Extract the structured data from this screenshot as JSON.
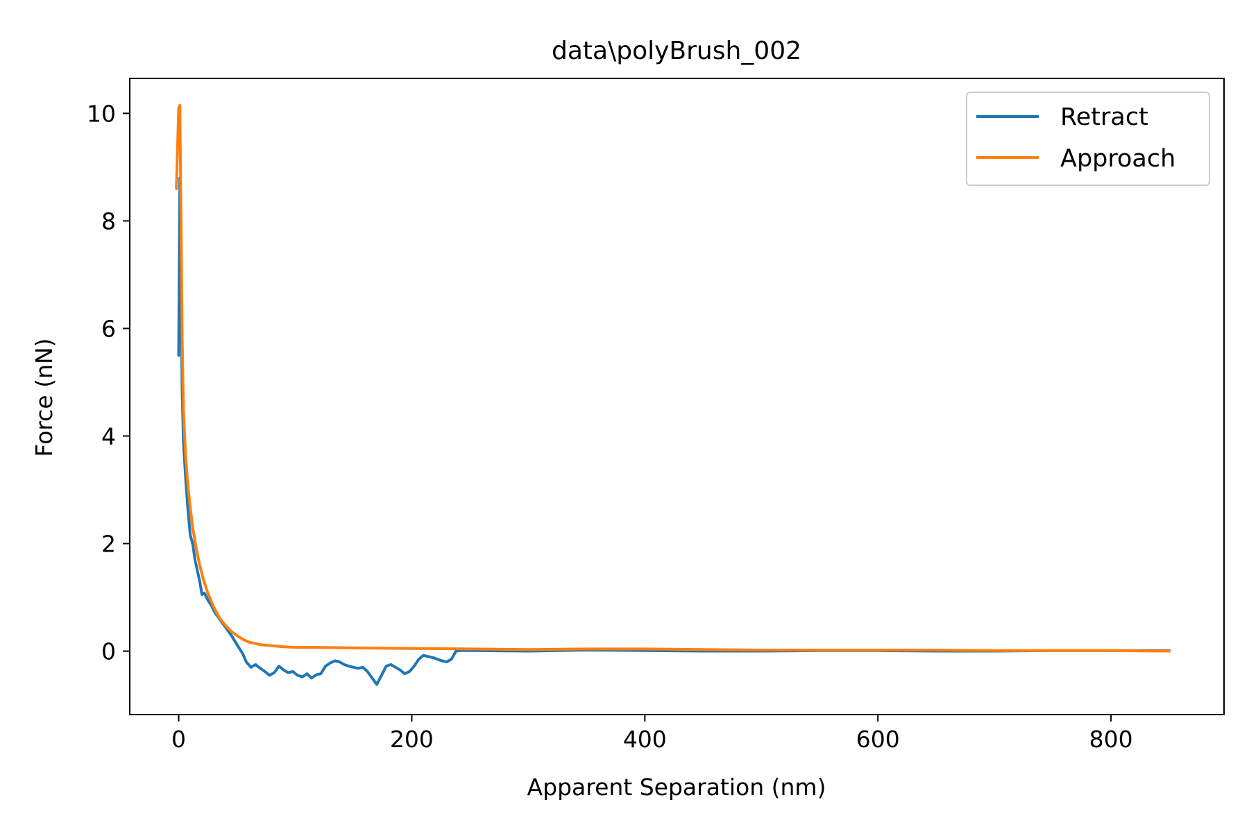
{
  "chart_data": {
    "type": "line",
    "title": "data\\polyBrush_002",
    "xlabel": "Apparent Separation (nm)",
    "ylabel": "Force (nN)",
    "xlim": [
      -42,
      897
    ],
    "ylim": [
      -1.18,
      10.65
    ],
    "xticks": [
      0,
      200,
      400,
      600,
      800
    ],
    "xtick_labels": [
      "0",
      "200",
      "400",
      "600",
      "800"
    ],
    "yticks": [
      0,
      2,
      4,
      6,
      8,
      10
    ],
    "ytick_labels": [
      "0",
      "2",
      "4",
      "6",
      "8",
      "10"
    ],
    "grid": false,
    "legend_position": "top-right",
    "series": [
      {
        "name": "Retract",
        "color": "#1f77b4",
        "x": [
          0,
          1,
          2,
          3,
          4,
          6,
          8,
          10,
          12,
          14,
          16,
          18,
          20,
          22,
          25,
          28,
          31,
          35,
          40,
          45,
          50,
          55,
          58,
          62,
          66,
          70,
          74,
          78,
          82,
          86,
          90,
          94,
          98,
          102,
          106,
          110,
          114,
          118,
          122,
          126,
          130,
          134,
          138,
          142,
          146,
          150,
          154,
          158,
          162,
          166,
          170,
          174,
          178,
          182,
          186,
          190,
          194,
          198,
          202,
          206,
          210,
          214,
          218,
          222,
          226,
          230,
          234,
          238,
          242,
          250,
          300,
          350,
          400,
          450,
          500,
          550,
          600,
          650,
          700,
          750,
          800,
          850
        ],
        "y": [
          5.5,
          8.8,
          6.5,
          4.8,
          3.9,
          3.2,
          2.6,
          2.15,
          2.0,
          1.7,
          1.5,
          1.3,
          1.05,
          1.08,
          0.95,
          0.85,
          0.72,
          0.6,
          0.45,
          0.3,
          0.12,
          -0.05,
          -0.2,
          -0.3,
          -0.25,
          -0.32,
          -0.38,
          -0.45,
          -0.4,
          -0.28,
          -0.35,
          -0.4,
          -0.38,
          -0.45,
          -0.48,
          -0.42,
          -0.5,
          -0.44,
          -0.42,
          -0.28,
          -0.22,
          -0.18,
          -0.2,
          -0.25,
          -0.28,
          -0.3,
          -0.32,
          -0.3,
          -0.38,
          -0.5,
          -0.62,
          -0.45,
          -0.28,
          -0.25,
          -0.3,
          -0.35,
          -0.42,
          -0.38,
          -0.28,
          -0.15,
          -0.08,
          -0.1,
          -0.12,
          -0.15,
          -0.18,
          -0.2,
          -0.15,
          0.0,
          0.01,
          0.01,
          0.0,
          0.02,
          0.01,
          0.0,
          0.0,
          0.01,
          0.01,
          0.0,
          0.0,
          0.01,
          0.01,
          0.01
        ]
      },
      {
        "name": "Approach",
        "color": "#ff7f0e",
        "x": [
          -2,
          0,
          1,
          2,
          3,
          4,
          6,
          8,
          10,
          12,
          15,
          18,
          21,
          25,
          30,
          35,
          40,
          45,
          50,
          55,
          60,
          70,
          80,
          90,
          100,
          120,
          150,
          200,
          250,
          300,
          350,
          400,
          450,
          500,
          550,
          600,
          650,
          700,
          750,
          800,
          850
        ],
        "y": [
          8.6,
          10.1,
          10.15,
          8.0,
          5.8,
          4.5,
          3.6,
          3.05,
          2.65,
          2.3,
          1.92,
          1.6,
          1.35,
          1.08,
          0.82,
          0.62,
          0.48,
          0.37,
          0.29,
          0.22,
          0.17,
          0.12,
          0.1,
          0.08,
          0.07,
          0.07,
          0.06,
          0.05,
          0.04,
          0.03,
          0.04,
          0.04,
          0.03,
          0.02,
          0.02,
          0.02,
          0.02,
          0.01,
          0.01,
          0.01,
          0.0
        ]
      }
    ]
  }
}
